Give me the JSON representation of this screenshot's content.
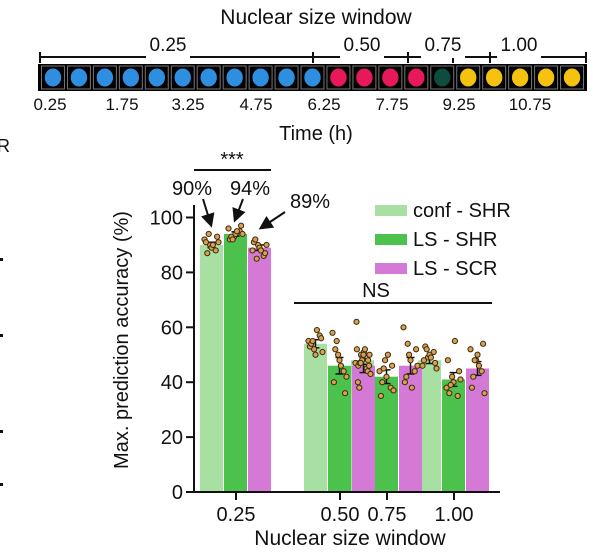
{
  "top_panel": {
    "title": "Nuclear size window",
    "window_labels": [
      "0.25",
      "0.50",
      "0.75",
      "1.00"
    ],
    "time_ticks": [
      "0.25",
      "1.75",
      "3.25",
      "4.75",
      "6.25",
      "7.75",
      "9.25",
      "10.75"
    ],
    "xlabel": "Time (h)",
    "strip_segments": [
      {
        "color": "#2e8fe0",
        "count": 11
      },
      {
        "color": "#e8195a",
        "count": 4
      },
      {
        "color": "#0e4d3e",
        "count": 1
      },
      {
        "color": "#f5c20f",
        "count": 5
      }
    ]
  },
  "edge_text": {
    "left_r": "R"
  },
  "chart_data": {
    "type": "bar",
    "title": "",
    "xlabel": "Nuclear size window",
    "ylabel": "Max. prediction accuracy (%)",
    "categories": [
      "0.25",
      "0.50",
      "0.75",
      "1.00"
    ],
    "yticks": [
      "0",
      "20",
      "40",
      "60",
      "80",
      "100"
    ],
    "ylim": [
      0,
      100
    ],
    "legend_position": "top-right",
    "series": [
      {
        "name": "conf - SHR",
        "color": "#a8e0a4",
        "values": [
          90,
          54,
          48,
          48
        ],
        "errors": [
          1.0,
          1.5,
          1.5,
          1.2
        ],
        "points": [
          [
            92,
            90,
            88,
            91,
            89,
            93,
            87,
            90,
            91,
            94
          ],
          [
            55,
            52,
            57,
            53,
            50,
            56,
            54,
            59,
            51,
            55
          ],
          [
            47,
            50,
            45,
            52,
            49,
            48,
            46,
            51,
            50,
            47
          ],
          [
            46,
            49,
            51,
            48,
            50,
            47,
            53,
            49,
            45,
            52
          ]
        ]
      },
      {
        "name": "LS - SHR",
        "color": "#4cc24c",
        "values": [
          94,
          46,
          42,
          41
        ],
        "errors": [
          0.8,
          3.0,
          2.5,
          2.5
        ],
        "points": [
          [
            96,
            93,
            95,
            92,
            94,
            97,
            93,
            95,
            94,
            92
          ],
          [
            58,
            50,
            44,
            40,
            48,
            36,
            52,
            46,
            42,
            55
          ],
          [
            44,
            48,
            38,
            35,
            42,
            46,
            40,
            50,
            37,
            45
          ],
          [
            38,
            42,
            35,
            48,
            40,
            44,
            36,
            55,
            41,
            39
          ]
        ]
      },
      {
        "name": "LS - SCR",
        "color": "#d47ad6",
        "values": [
          89,
          46,
          46,
          45
        ],
        "errors": [
          1.0,
          2.5,
          3.0,
          2.5
        ],
        "points": [
          [
            88,
            90,
            86,
            91,
            89,
            87,
            92,
            88,
            90,
            85
          ],
          [
            62,
            48,
            44,
            40,
            50,
            46,
            38,
            52,
            43,
            47
          ],
          [
            60,
            50,
            44,
            40,
            48,
            52,
            42,
            38,
            46,
            54
          ],
          [
            52,
            48,
            44,
            38,
            50,
            54,
            42,
            46,
            36,
            48
          ]
        ]
      }
    ],
    "annotations": [
      {
        "text": "***",
        "type": "bracket",
        "span": [
          "0.25",
          "0.25"
        ]
      },
      {
        "text": "NS",
        "type": "bracket",
        "span": [
          "0.50",
          "1.00"
        ]
      },
      {
        "text": "90%",
        "target": "conf - SHR"
      },
      {
        "text": "94%",
        "target": "LS - SHR"
      },
      {
        "text": "89%",
        "target": "LS - SCR"
      }
    ]
  }
}
